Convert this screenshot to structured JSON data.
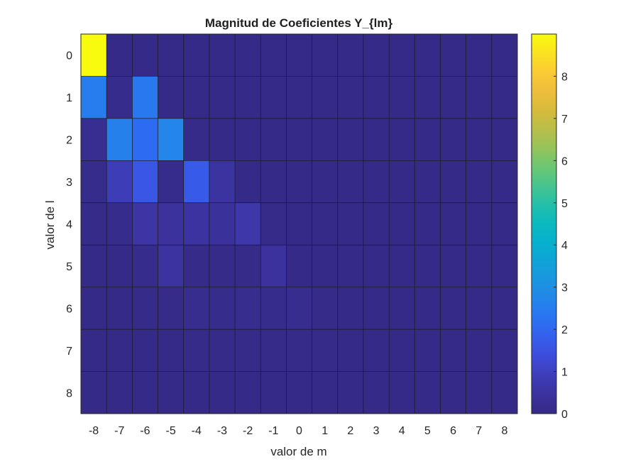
{
  "chart_data": {
    "type": "heatmap",
    "title": "Magnitud de Coeficientes Y_{lm}",
    "xlabel": "valor de m",
    "ylabel": "valor de l",
    "x_categories": [
      "-8",
      "-7",
      "-6",
      "-5",
      "-4",
      "-3",
      "-2",
      "-1",
      "0",
      "1",
      "2",
      "3",
      "4",
      "5",
      "6",
      "7",
      "8"
    ],
    "y_categories": [
      "0",
      "1",
      "2",
      "3",
      "4",
      "5",
      "6",
      "7",
      "8"
    ],
    "values": [
      [
        9.0,
        0,
        0,
        0,
        0,
        0,
        0,
        0,
        0,
        0,
        0,
        0,
        0,
        0,
        0,
        0,
        0
      ],
      [
        2.5,
        0.1,
        2.4,
        0,
        0,
        0,
        0,
        0,
        0,
        0,
        0,
        0,
        0,
        0,
        0,
        0,
        0
      ],
      [
        0.2,
        2.6,
        2.1,
        2.7,
        0.05,
        0,
        0,
        0,
        0,
        0,
        0,
        0,
        0,
        0,
        0,
        0,
        0
      ],
      [
        0.1,
        0.9,
        1.6,
        0.1,
        1.7,
        0.5,
        0,
        0,
        0,
        0,
        0,
        0,
        0,
        0,
        0,
        0,
        0
      ],
      [
        0.05,
        0.1,
        0.6,
        0.45,
        0.5,
        0.4,
        0.7,
        0.05,
        0,
        0,
        0,
        0,
        0,
        0,
        0,
        0,
        0
      ],
      [
        0,
        0,
        0.1,
        0.5,
        0.05,
        0.05,
        0.05,
        0.45,
        0,
        0,
        0,
        0,
        0,
        0,
        0,
        0,
        0
      ],
      [
        0,
        0,
        0.05,
        0.05,
        0.15,
        0.1,
        0.15,
        0.1,
        0.15,
        0.05,
        0,
        0,
        0,
        0,
        0,
        0,
        0
      ],
      [
        0,
        0,
        0,
        0,
        0.05,
        0.05,
        0.05,
        0.05,
        0.05,
        0.05,
        0,
        0,
        0,
        0,
        0,
        0,
        0
      ],
      [
        0,
        0,
        0,
        0,
        0,
        0,
        0,
        0,
        0,
        0,
        0,
        0,
        0,
        0,
        0,
        0,
        0
      ]
    ],
    "colorbar": {
      "colormap": "parula",
      "range": [
        0,
        9
      ],
      "ticks": [
        "0",
        "1",
        "2",
        "3",
        "4",
        "5",
        "6",
        "7",
        "8"
      ],
      "tick_values": [
        0,
        1,
        2,
        3,
        4,
        5,
        6,
        7,
        8
      ]
    },
    "grid": true
  }
}
